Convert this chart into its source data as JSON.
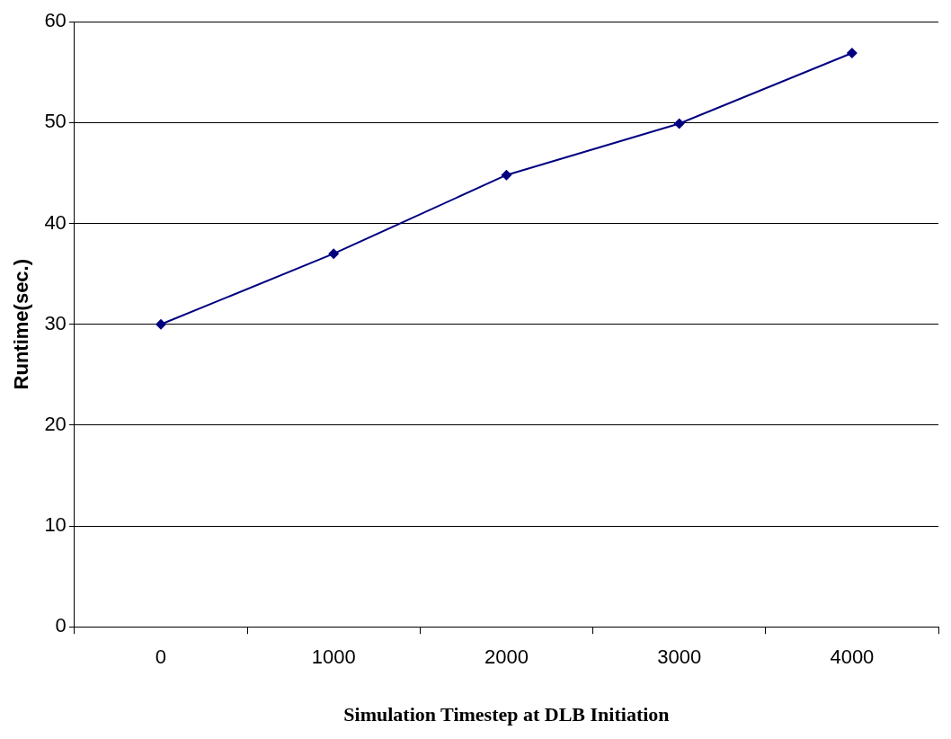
{
  "chart_data": {
    "type": "line",
    "xlabel": "Simulation Timestep at DLB Initiation",
    "ylabel": "Runtime(sec.)",
    "categories": [
      "0",
      "1000",
      "2000",
      "3000",
      "4000"
    ],
    "series": [
      {
        "color": "#000080",
        "values": [
          30,
          37,
          44.8,
          49.9,
          56.9
        ]
      }
    ],
    "ylim": [
      0,
      60
    ],
    "yticks": [
      0,
      10,
      20,
      30,
      40,
      50,
      60
    ],
    "grid": "y",
    "legend": false,
    "marker": "diamond",
    "line_style": "solid"
  }
}
